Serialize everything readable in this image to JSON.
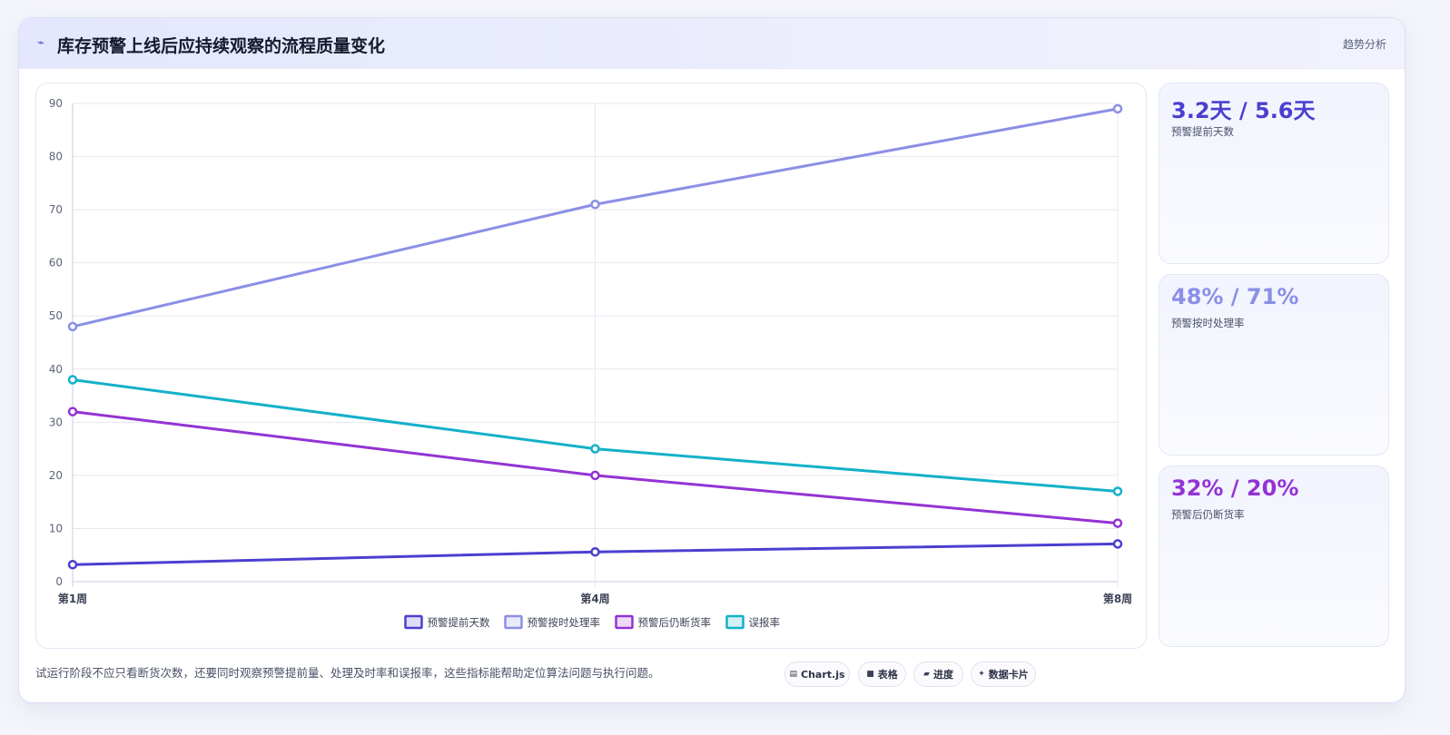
{
  "header": {
    "icon": "trend-spark-icon",
    "title": "库存预警上线后应持续观察的流程质量变化",
    "tag": "趋势分析"
  },
  "chart_data": {
    "type": "line",
    "categories": [
      "第1周",
      "第4周",
      "第8周"
    ],
    "ylim": [
      0,
      90
    ],
    "yticks": [
      0,
      10,
      20,
      30,
      40,
      50,
      60,
      70,
      80,
      90
    ],
    "grid": true,
    "legend": "bottom",
    "title": "",
    "xlabel": "",
    "ylabel": "",
    "series": [
      {
        "name": "预警提前天数",
        "color": "#4b3fd0",
        "values": [
          3.2,
          5.6,
          7.1
        ]
      },
      {
        "name": "预警按时处理率",
        "color": "#8b8fe6",
        "values": [
          48,
          71,
          89
        ]
      },
      {
        "name": "预警后仍断货率",
        "color": "#9333d4",
        "values": [
          32,
          20,
          11
        ]
      },
      {
        "name": "误报率",
        "color": "#13b1c8",
        "values": [
          38,
          25,
          17
        ]
      }
    ]
  },
  "stats": [
    {
      "value": "3.2天 / 5.6天",
      "label": "预警提前天数",
      "color": "#4b3fd0"
    },
    {
      "value": "48% / 71%",
      "label": "预警按时处理率",
      "color": "#8b8fe6"
    },
    {
      "value": "32% / 20%",
      "label": "预警后仍断货率",
      "color": "#9333d4"
    }
  ],
  "footer": {
    "note": "试运行阶段不应只看断货次数，还要同时观察预警提前量、处理及时率和误报率，这些指标能帮助定位算法问题与执行问题。",
    "chips": [
      {
        "icon": "chart-icon",
        "glyph": "▤",
        "label": "Chart.js"
      },
      {
        "icon": "table-icon",
        "glyph": "■",
        "label": "表格"
      },
      {
        "icon": "progress-icon",
        "glyph": "▰",
        "label": "进度"
      },
      {
        "icon": "sparkle-icon",
        "glyph": "✦",
        "label": "数据卡片"
      }
    ]
  }
}
